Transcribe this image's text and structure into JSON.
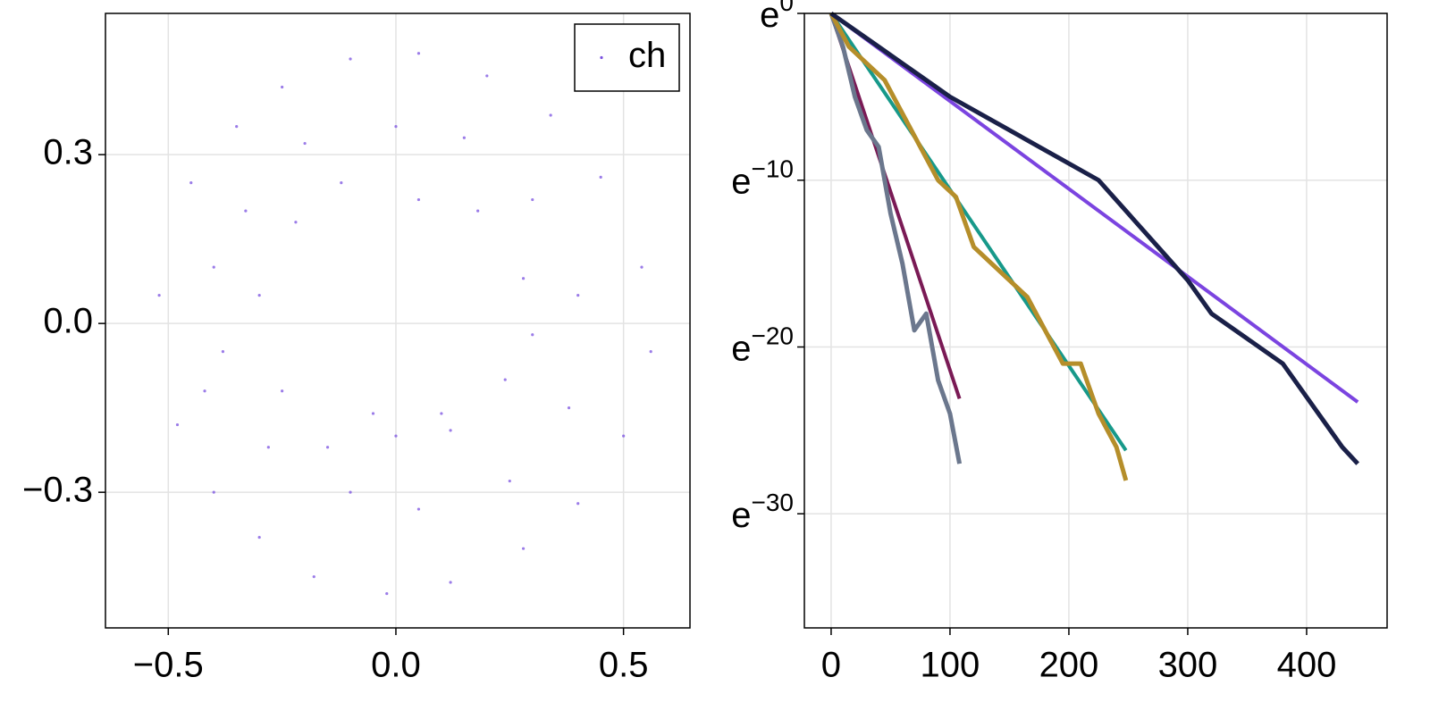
{
  "chart_data": [
    {
      "type": "scatter",
      "xlim": [
        -0.638,
        0.646
      ],
      "ylim": [
        -0.541,
        0.551
      ],
      "xticks": [
        {
          "value": -0.5,
          "label": "−0.5"
        },
        {
          "value": 0,
          "label": "0.0"
        },
        0.5
      ],
      "yticks": [
        {
          "value": -0.3,
          "label": "−0.3"
        },
        {
          "value": 0,
          "label": "0.0"
        },
        0.3
      ],
      "grid": true,
      "legend": "upper right",
      "series": [
        {
          "name": "ch",
          "color": "#7a50e0",
          "x": [
            -0.52,
            -0.48,
            -0.45,
            -0.4,
            -0.35,
            -0.3,
            -0.25,
            -0.18,
            -0.1,
            -0.02,
            0.05,
            0.12,
            0.2,
            0.28,
            0.34,
            0.4,
            0.45,
            0.5,
            0.54,
            0.56,
            -0.3,
            -0.25,
            -0.22,
            -0.15,
            -0.12,
            0.0,
            0.05,
            0.12,
            0.18,
            0.24,
            0.28,
            0.3,
            -0.4,
            -0.38,
            -0.33,
            -0.2,
            0.0,
            0.15,
            0.3,
            0.4,
            0.38,
            0.25,
            0.05,
            -0.1,
            -0.28,
            -0.42,
            0.1,
            -0.05
          ],
          "values": [
            0.05,
            -0.18,
            0.25,
            -0.3,
            0.35,
            -0.38,
            0.42,
            -0.45,
            0.47,
            -0.48,
            0.48,
            -0.46,
            0.44,
            -0.4,
            0.37,
            -0.32,
            0.26,
            -0.2,
            0.1,
            -0.05,
            0.05,
            -0.12,
            0.18,
            -0.22,
            0.25,
            -0.2,
            0.22,
            -0.19,
            0.2,
            -0.1,
            0.08,
            -0.02,
            0.1,
            -0.05,
            0.2,
            0.32,
            0.35,
            0.33,
            0.22,
            0.05,
            -0.15,
            -0.28,
            -0.33,
            -0.3,
            -0.22,
            -0.12,
            -0.16,
            -0.16
          ]
        }
      ]
    },
    {
      "type": "line",
      "yscale": "log",
      "xlim": [
        -22.5,
        467.7
      ],
      "ylim": [
        1e-16,
        1
      ],
      "xticks": [
        0,
        100,
        200,
        300,
        400
      ],
      "yticks": [
        {
          "value": 1,
          "label": "e",
          "exponent": "0"
        },
        {
          "value": 4.5399929762484854e-05,
          "label": "e",
          "exponent": "−10"
        },
        {
          "value": 2.061153622438558e-09,
          "label": "e",
          "exponent": "−20"
        },
        {
          "value": 9.357622968840175e-14,
          "label": "e",
          "exponent": "−30"
        }
      ],
      "grid": true,
      "series": [
        {
          "color": "#7b44e0",
          "x": [
            0,
            443
          ],
          "values": [
            1,
            7.6e-11
          ]
        },
        {
          "color": "#17998a",
          "x": [
            0,
            248
          ],
          "values": [
            1,
            4.2e-12
          ]
        },
        {
          "color": "#7a1a55",
          "x": [
            0,
            108
          ],
          "values": [
            1,
            9.3e-11
          ]
        },
        {
          "color": "#6b778d",
          "x": [
            0,
            10,
            20,
            30,
            40,
            50,
            60,
            70,
            80,
            90,
            100,
            108
          ],
          "values": [
            1,
            0.1353,
            0.006738,
            0.0009119,
            0.0003355,
            6.144e-06,
            3.059e-07,
            5.603e-09,
            1.523e-08,
            2.789e-10,
            3.775e-11,
            1.88e-12
          ]
        },
        {
          "color": "#b58e2a",
          "x": [
            0,
            15,
            30,
            45,
            60,
            75,
            90,
            105,
            120,
            135,
            150,
            165,
            180,
            195,
            210,
            225,
            240,
            248
          ],
          "values": [
            1,
            0.1353,
            0.04979,
            0.01832,
            0.002479,
            0.0003355,
            4.54e-05,
            1.67e-05,
            8.315e-07,
            3.059e-07,
            1.125e-07,
            4.14e-08,
            5.603e-09,
            7.583e-10,
            7.583e-10,
            3.775e-11,
            5.109e-12,
            6.914e-13
          ]
        },
        {
          "color": "#1a2048",
          "x": [
            0,
            20,
            40,
            60,
            80,
            100,
            125,
            150,
            175,
            200,
            225,
            250,
            275,
            300,
            320,
            340,
            360,
            380,
            400,
            420,
            430,
            443
          ],
          "values": [
            1,
            0.3679,
            0.1353,
            0.04979,
            0.01832,
            0.006738,
            0.002479,
            0.0009119,
            0.0003355,
            0.0001234,
            4.54e-05,
            6.144e-06,
            8.315e-07,
            1.125e-07,
            1.523e-08,
            5.603e-09,
            2.061e-09,
            7.583e-10,
            1.026e-10,
            1.389e-11,
            5.109e-12,
            1.88e-12
          ]
        }
      ]
    }
  ]
}
